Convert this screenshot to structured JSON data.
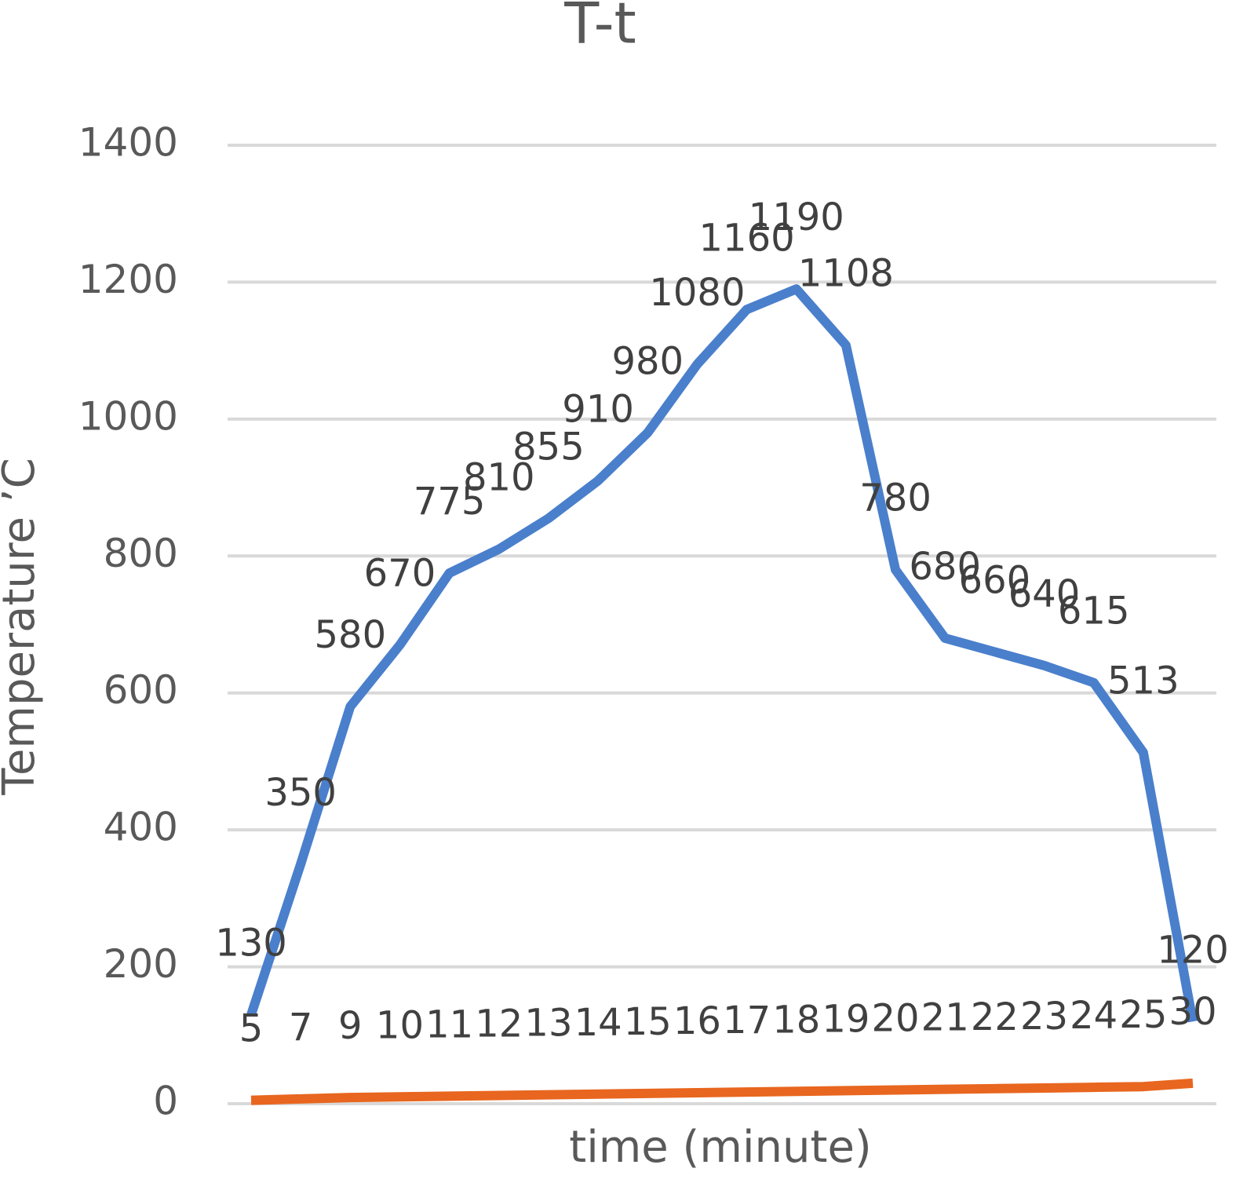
{
  "chart_data": {
    "type": "line",
    "title": "T-t",
    "x_label": "time (minute)",
    "y_label": "Temperature ’C",
    "categories": [
      null,
      null,
      null,
      null,
      null,
      null,
      null,
      null,
      null,
      null,
      null,
      null,
      null,
      null,
      null,
      null,
      null,
      null,
      null,
      null
    ],
    "series": [
      {
        "color": "#4a7fcc",
        "values": [
          130,
          350,
          580,
          670,
          775,
          810,
          855,
          910,
          980,
          1080,
          1160,
          1190,
          1108,
          780,
          680,
          660,
          640,
          615,
          513,
          120
        ]
      },
      {
        "color": "#e8661f",
        "values": [
          5,
          7,
          9,
          10,
          11,
          12,
          13,
          14,
          15,
          16,
          17,
          18,
          19,
          20,
          21,
          22,
          23,
          24,
          25,
          30
        ]
      }
    ],
    "data_labels": true,
    "ylim": [
      0,
      1400
    ],
    "yticks": [
      0,
      200,
      400,
      600,
      800,
      1000,
      1200,
      1400
    ],
    "grid": true
  }
}
